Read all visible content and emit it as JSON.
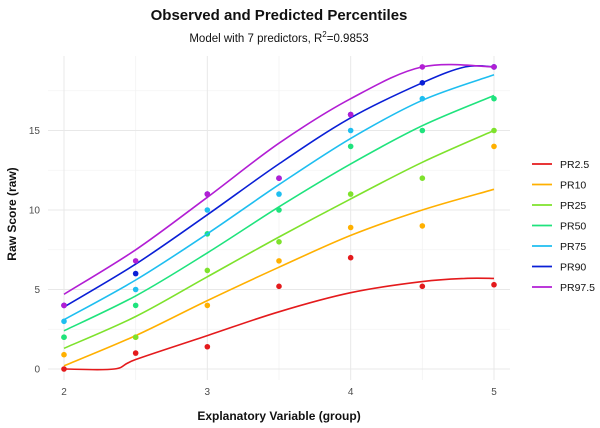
{
  "chart_data": {
    "type": "line",
    "title": "Observed and Predicted Percentiles",
    "subtitle_prefix": "Model with 7 predictors, R",
    "subtitle_sup": "2",
    "subtitle_suffix": "=0.9853",
    "xlabel": "Explanatory Variable (group)",
    "ylabel": "Raw Score (raw)",
    "xlim": [
      2,
      5
    ],
    "ylim": [
      0,
      19
    ],
    "xticks": [
      2,
      3,
      4,
      5
    ],
    "yticks": [
      0,
      5,
      10,
      15
    ],
    "grid": true,
    "legend_position": "right",
    "points_x": [
      2,
      2.5,
      3,
      3.5,
      4,
      4.5,
      5
    ],
    "series": [
      {
        "name": "PR2.5",
        "color": "#e41a1c",
        "observed": [
          0.0,
          1.0,
          1.4,
          5.2,
          7.0,
          5.2,
          5.3
        ],
        "predicted_x": [
          2.0,
          2.35,
          2.5,
          3.0,
          3.5,
          4.0,
          4.5,
          4.8,
          5.0
        ],
        "predicted_y": [
          0.0,
          0.0,
          0.6,
          2.1,
          3.6,
          4.8,
          5.5,
          5.7,
          5.7
        ]
      },
      {
        "name": "PR10",
        "color": "#ffb000",
        "observed": [
          0.9,
          2.0,
          4.0,
          6.8,
          8.9,
          9.0,
          14.0
        ],
        "predicted_x": [
          2.0,
          2.5,
          3.0,
          3.5,
          4.0,
          4.5,
          5.0
        ],
        "predicted_y": [
          0.2,
          2.1,
          4.3,
          6.4,
          8.4,
          10.0,
          11.3
        ]
      },
      {
        "name": "PR25",
        "color": "#7ee22c",
        "observed": [
          2.0,
          2.0,
          6.2,
          8.0,
          11.0,
          12.0,
          15.0
        ],
        "predicted_x": [
          2.0,
          2.5,
          3.0,
          3.5,
          4.0,
          4.5,
          5.0
        ],
        "predicted_y": [
          1.3,
          3.3,
          5.8,
          8.3,
          10.7,
          13.0,
          15.0
        ]
      },
      {
        "name": "PR50",
        "color": "#1fe37d",
        "observed": [
          2.0,
          4.0,
          8.5,
          10.0,
          14.0,
          15.0,
          17.0
        ],
        "predicted_x": [
          2.0,
          2.5,
          3.0,
          3.5,
          4.0,
          4.5,
          5.0
        ],
        "predicted_y": [
          2.4,
          4.6,
          7.3,
          10.2,
          12.9,
          15.3,
          17.2
        ]
      },
      {
        "name": "PR75",
        "color": "#1ebef0",
        "observed": [
          3.0,
          5.0,
          10.0,
          11.0,
          15.0,
          17.0,
          19.0
        ],
        "predicted_x": [
          2.0,
          2.5,
          3.0,
          3.5,
          4.0,
          4.5,
          5.0
        ],
        "predicted_y": [
          3.1,
          5.6,
          8.5,
          11.6,
          14.5,
          16.9,
          18.5
        ]
      },
      {
        "name": "PR90",
        "color": "#0a1fd6",
        "observed": [
          4.0,
          6.0,
          11.0,
          12.0,
          16.0,
          18.0,
          19.0
        ],
        "predicted_x": [
          2.0,
          2.5,
          3.0,
          3.5,
          4.0,
          4.5,
          4.8,
          5.0
        ],
        "predicted_y": [
          3.9,
          6.6,
          9.7,
          12.9,
          15.8,
          18.0,
          19.0,
          19.0
        ]
      },
      {
        "name": "PR97.5",
        "color": "#b21ed4",
        "observed": [
          4.0,
          6.8,
          11.0,
          12.0,
          16.0,
          19.0,
          19.0
        ],
        "predicted_x": [
          2.0,
          2.5,
          3.0,
          3.5,
          4.0,
          4.5,
          5.0
        ],
        "predicted_y": [
          4.7,
          7.5,
          10.8,
          14.2,
          17.0,
          19.0,
          19.0
        ]
      }
    ]
  }
}
